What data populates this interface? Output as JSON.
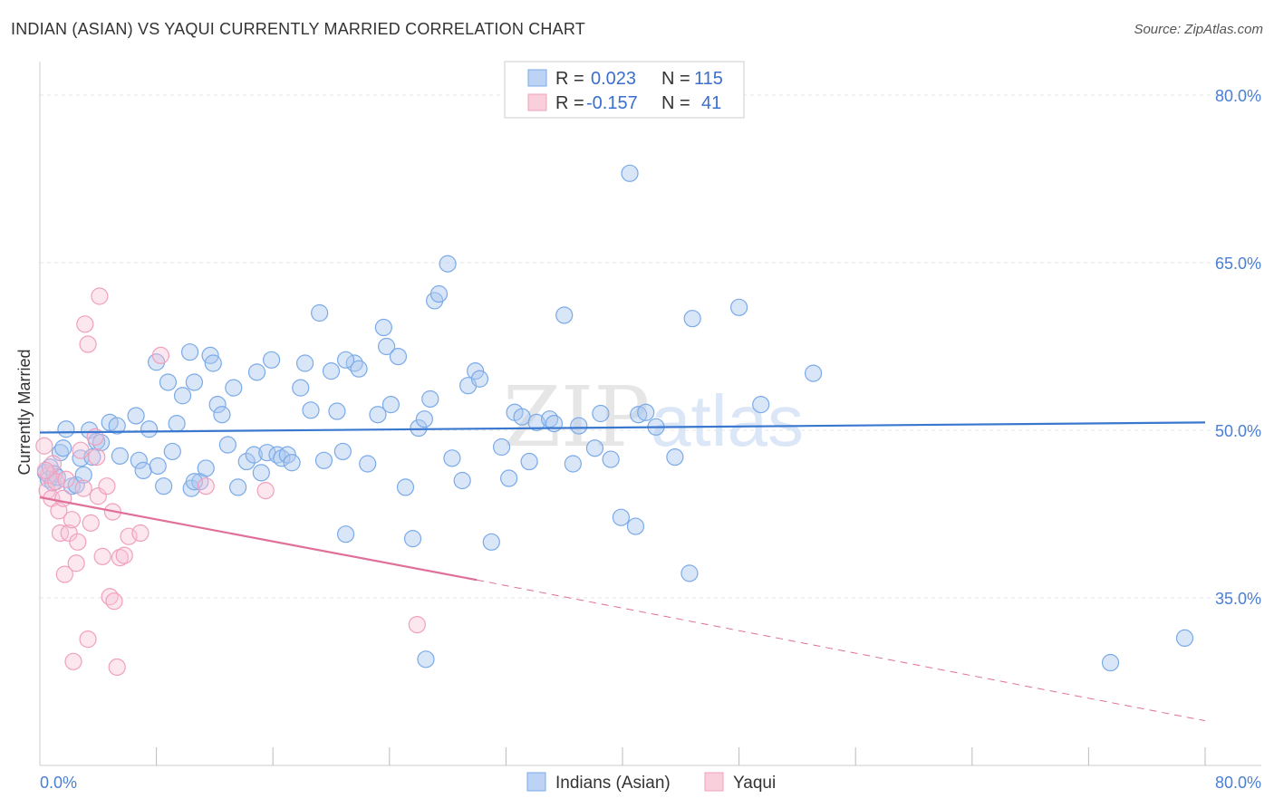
{
  "title": "INDIAN (ASIAN) VS YAQUI CURRENTLY MARRIED CORRELATION CHART",
  "source": "Source: ZipAtlas.com",
  "watermark": "ZIPatlas",
  "legend": {
    "rows": [
      {
        "r_label": "R =",
        "r_value": "0.023",
        "n_label": "N =",
        "n_value": "115"
      },
      {
        "r_label": "R =",
        "r_value": "-0.157",
        "n_label": "N =",
        "n_value": "41"
      }
    ]
  },
  "bottom_legend": [
    "Indians (Asian)",
    "Yaqui"
  ],
  "chart_data": {
    "type": "scatter",
    "title": "INDIAN (ASIAN) VS YAQUI CURRENTLY MARRIED CORRELATION CHART",
    "xlabel": "",
    "ylabel": "Currently Married",
    "xlim": [
      0,
      80
    ],
    "ylim": [
      20,
      83
    ],
    "x_tick_labels": [
      "0.0%",
      "80.0%"
    ],
    "y_ticks": [
      35,
      50,
      65,
      80
    ],
    "y_tick_labels": [
      "35.0%",
      "50.0%",
      "65.0%",
      "80.0%"
    ],
    "grid": true,
    "legend_position": "top-center",
    "colors": {
      "indians": "#7aaae8",
      "yaqui": "#f0a0bc",
      "indians_line": "#3a78d0",
      "yaqui_line": "#e0709a"
    },
    "series": [
      {
        "name": "Indians (Asian)",
        "R": 0.023,
        "N": 115,
        "trend": {
          "x": [
            0,
            80
          ],
          "y": [
            49.8,
            50.7
          ]
        },
        "points": [
          [
            0.4,
            46.2
          ],
          [
            0.6,
            45.6
          ],
          [
            0.7,
            46.7
          ],
          [
            0.9,
            45.3
          ],
          [
            1.0,
            46.1
          ],
          [
            1.2,
            45.8
          ],
          [
            1.4,
            48.0
          ],
          [
            1.6,
            48.4
          ],
          [
            1.8,
            50.1
          ],
          [
            2.2,
            45.0
          ],
          [
            2.5,
            45.1
          ],
          [
            2.8,
            47.5
          ],
          [
            3.0,
            46.0
          ],
          [
            3.4,
            50.0
          ],
          [
            3.6,
            47.6
          ],
          [
            3.9,
            49.0
          ],
          [
            4.2,
            48.9
          ],
          [
            4.8,
            50.7
          ],
          [
            5.3,
            50.4
          ],
          [
            5.5,
            47.7
          ],
          [
            6.6,
            51.3
          ],
          [
            6.8,
            47.3
          ],
          [
            7.1,
            46.4
          ],
          [
            7.5,
            50.1
          ],
          [
            8.0,
            56.1
          ],
          [
            8.1,
            46.8
          ],
          [
            8.5,
            45.0
          ],
          [
            8.8,
            54.3
          ],
          [
            9.1,
            48.1
          ],
          [
            9.4,
            50.6
          ],
          [
            9.8,
            53.1
          ],
          [
            10.3,
            57.0
          ],
          [
            10.4,
            44.8
          ],
          [
            10.6,
            54.3
          ],
          [
            11.0,
            45.4
          ],
          [
            11.4,
            46.6
          ],
          [
            11.7,
            56.7
          ],
          [
            11.9,
            56.0
          ],
          [
            12.2,
            52.3
          ],
          [
            12.5,
            51.4
          ],
          [
            12.9,
            48.7
          ],
          [
            13.3,
            53.8
          ],
          [
            13.6,
            44.9
          ],
          [
            14.2,
            47.2
          ],
          [
            14.7,
            47.8
          ],
          [
            14.9,
            55.2
          ],
          [
            15.2,
            46.2
          ],
          [
            15.6,
            48.0
          ],
          [
            15.9,
            56.3
          ],
          [
            16.3,
            47.8
          ],
          [
            16.6,
            47.5
          ],
          [
            17.0,
            47.8
          ],
          [
            17.3,
            47.1
          ],
          [
            17.9,
            53.8
          ],
          [
            18.2,
            56.0
          ],
          [
            18.6,
            51.8
          ],
          [
            19.2,
            60.5
          ],
          [
            19.5,
            47.3
          ],
          [
            20.0,
            55.3
          ],
          [
            20.4,
            51.7
          ],
          [
            20.8,
            48.1
          ],
          [
            21.0,
            40.7
          ],
          [
            21.6,
            56.0
          ],
          [
            21.9,
            55.5
          ],
          [
            22.5,
            47.0
          ],
          [
            23.2,
            51.4
          ],
          [
            23.6,
            59.2
          ],
          [
            23.8,
            57.5
          ],
          [
            24.1,
            52.3
          ],
          [
            24.6,
            56.6
          ],
          [
            25.1,
            44.9
          ],
          [
            25.6,
            40.3
          ],
          [
            26.0,
            50.2
          ],
          [
            26.4,
            51.0
          ],
          [
            26.8,
            52.8
          ],
          [
            27.1,
            61.6
          ],
          [
            27.4,
            62.2
          ],
          [
            28.0,
            64.9
          ],
          [
            28.3,
            47.5
          ],
          [
            29.0,
            45.5
          ],
          [
            29.4,
            54.0
          ],
          [
            29.9,
            55.3
          ],
          [
            30.2,
            54.6
          ],
          [
            31.0,
            40.0
          ],
          [
            31.7,
            48.5
          ],
          [
            32.2,
            45.7
          ],
          [
            32.6,
            51.6
          ],
          [
            33.1,
            51.2
          ],
          [
            33.6,
            47.2
          ],
          [
            34.1,
            50.7
          ],
          [
            35.0,
            51.0
          ],
          [
            35.3,
            50.6
          ],
          [
            36.0,
            60.3
          ],
          [
            36.6,
            47.0
          ],
          [
            37.0,
            50.4
          ],
          [
            38.1,
            48.4
          ],
          [
            38.5,
            51.5
          ],
          [
            39.2,
            47.4
          ],
          [
            39.9,
            42.2
          ],
          [
            40.5,
            73.0
          ],
          [
            40.9,
            41.4
          ],
          [
            41.1,
            51.4
          ],
          [
            41.6,
            51.6
          ],
          [
            42.3,
            50.3
          ],
          [
            43.6,
            47.6
          ],
          [
            44.6,
            37.2
          ],
          [
            44.8,
            60.0
          ],
          [
            48.0,
            61.0
          ],
          [
            49.5,
            52.3
          ],
          [
            53.1,
            55.1
          ],
          [
            73.5,
            29.2
          ],
          [
            78.6,
            31.4
          ],
          [
            26.5,
            29.5
          ],
          [
            10.6,
            45.4
          ],
          [
            21.0,
            56.3
          ]
        ]
      },
      {
        "name": "Yaqui",
        "R": -0.157,
        "N": 41,
        "trend": {
          "x": [
            0,
            30
          ],
          "y": [
            44.0,
            36.6
          ]
        },
        "trend_dashed": {
          "x": [
            30,
            80
          ],
          "y": [
            36.6,
            24.0
          ]
        },
        "points": [
          [
            0.3,
            48.6
          ],
          [
            0.5,
            44.6
          ],
          [
            0.6,
            46.0
          ],
          [
            0.8,
            43.9
          ],
          [
            0.9,
            47.0
          ],
          [
            1.1,
            45.4
          ],
          [
            1.3,
            42.8
          ],
          [
            1.4,
            40.8
          ],
          [
            1.6,
            43.9
          ],
          [
            1.7,
            37.1
          ],
          [
            1.8,
            45.6
          ],
          [
            2.0,
            40.8
          ],
          [
            2.2,
            42.0
          ],
          [
            2.3,
            29.3
          ],
          [
            2.5,
            38.1
          ],
          [
            2.6,
            40.0
          ],
          [
            2.8,
            48.2
          ],
          [
            3.0,
            44.8
          ],
          [
            3.1,
            59.5
          ],
          [
            3.3,
            57.7
          ],
          [
            3.3,
            31.3
          ],
          [
            3.5,
            41.7
          ],
          [
            3.8,
            49.4
          ],
          [
            3.9,
            47.6
          ],
          [
            4.0,
            44.1
          ],
          [
            4.1,
            62.0
          ],
          [
            4.3,
            38.7
          ],
          [
            4.6,
            45.0
          ],
          [
            4.8,
            35.1
          ],
          [
            5.0,
            42.7
          ],
          [
            5.1,
            34.7
          ],
          [
            5.3,
            28.8
          ],
          [
            5.5,
            38.6
          ],
          [
            5.8,
            38.8
          ],
          [
            6.1,
            40.5
          ],
          [
            6.9,
            40.8
          ],
          [
            8.3,
            56.7
          ],
          [
            11.4,
            45.0
          ],
          [
            15.5,
            44.6
          ],
          [
            25.9,
            32.6
          ],
          [
            0.4,
            46.4
          ]
        ]
      }
    ]
  }
}
